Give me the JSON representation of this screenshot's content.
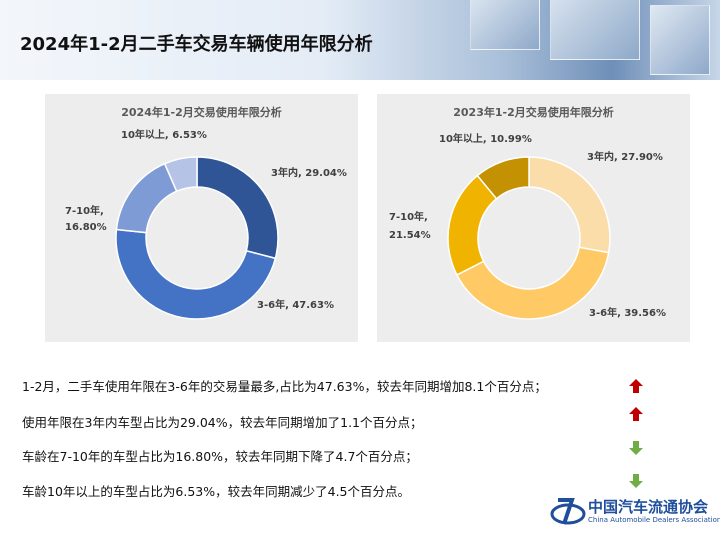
{
  "page_title": "2024年1-2月二手车交易车辆使用年限分析",
  "chart_data": [
    {
      "type": "pie",
      "title": "2024年1-2月交易使用年限分析",
      "categories": [
        "3年内",
        "3-6年",
        "7-10年",
        "10年以上"
      ],
      "values": [
        29.04,
        47.63,
        16.8,
        6.53
      ],
      "labels": [
        "3年内, 29.04%",
        "3-6年, 47.63%",
        "7-10年,",
        "16.80%",
        "10年以上, 6.53%"
      ],
      "colors": [
        "#2f5597",
        "#4472c4",
        "#7f9bd6",
        "#b4c3e6"
      ],
      "legend": "none"
    },
    {
      "type": "pie",
      "title": "2023年1-2月交易使用年限分析",
      "categories": [
        "3年内",
        "3-6年",
        "7-10年",
        "10年以上"
      ],
      "values": [
        27.9,
        39.56,
        21.54,
        10.99
      ],
      "labels": [
        "3年内, 27.90%",
        "3-6年, 39.56%",
        "7-10年,",
        "21.54%",
        "10年以上, 10.99%"
      ],
      "colors": [
        "#fbdda9",
        "#ffc966",
        "#f0b400",
        "#c49102"
      ],
      "legend": "none"
    }
  ],
  "statements": [
    {
      "text": "1-2月，二手车使用年限在3-6年的交易量最多,占比为47.63%，较去年同期增加8.1个百分点；",
      "trend": "up"
    },
    {
      "text": "使用年限在3年内车型占比为29.04%，较去年同期增加了1.1个百分点；",
      "trend": "up"
    },
    {
      "text": "车龄在7-10年的车型占比为16.80%，较去年同期下降了4.7个百分点；",
      "trend": "down"
    },
    {
      "text": "车龄10年以上的车型占比为6.53%，较去年同期减少了4.5个百分点。",
      "trend": "down"
    }
  ],
  "trend_colors": {
    "up": "#c00000",
    "down": "#70ad47"
  },
  "logo": {
    "name": "中国汽车流通协会",
    "subtitle": "China Automobile Dealers Association"
  }
}
